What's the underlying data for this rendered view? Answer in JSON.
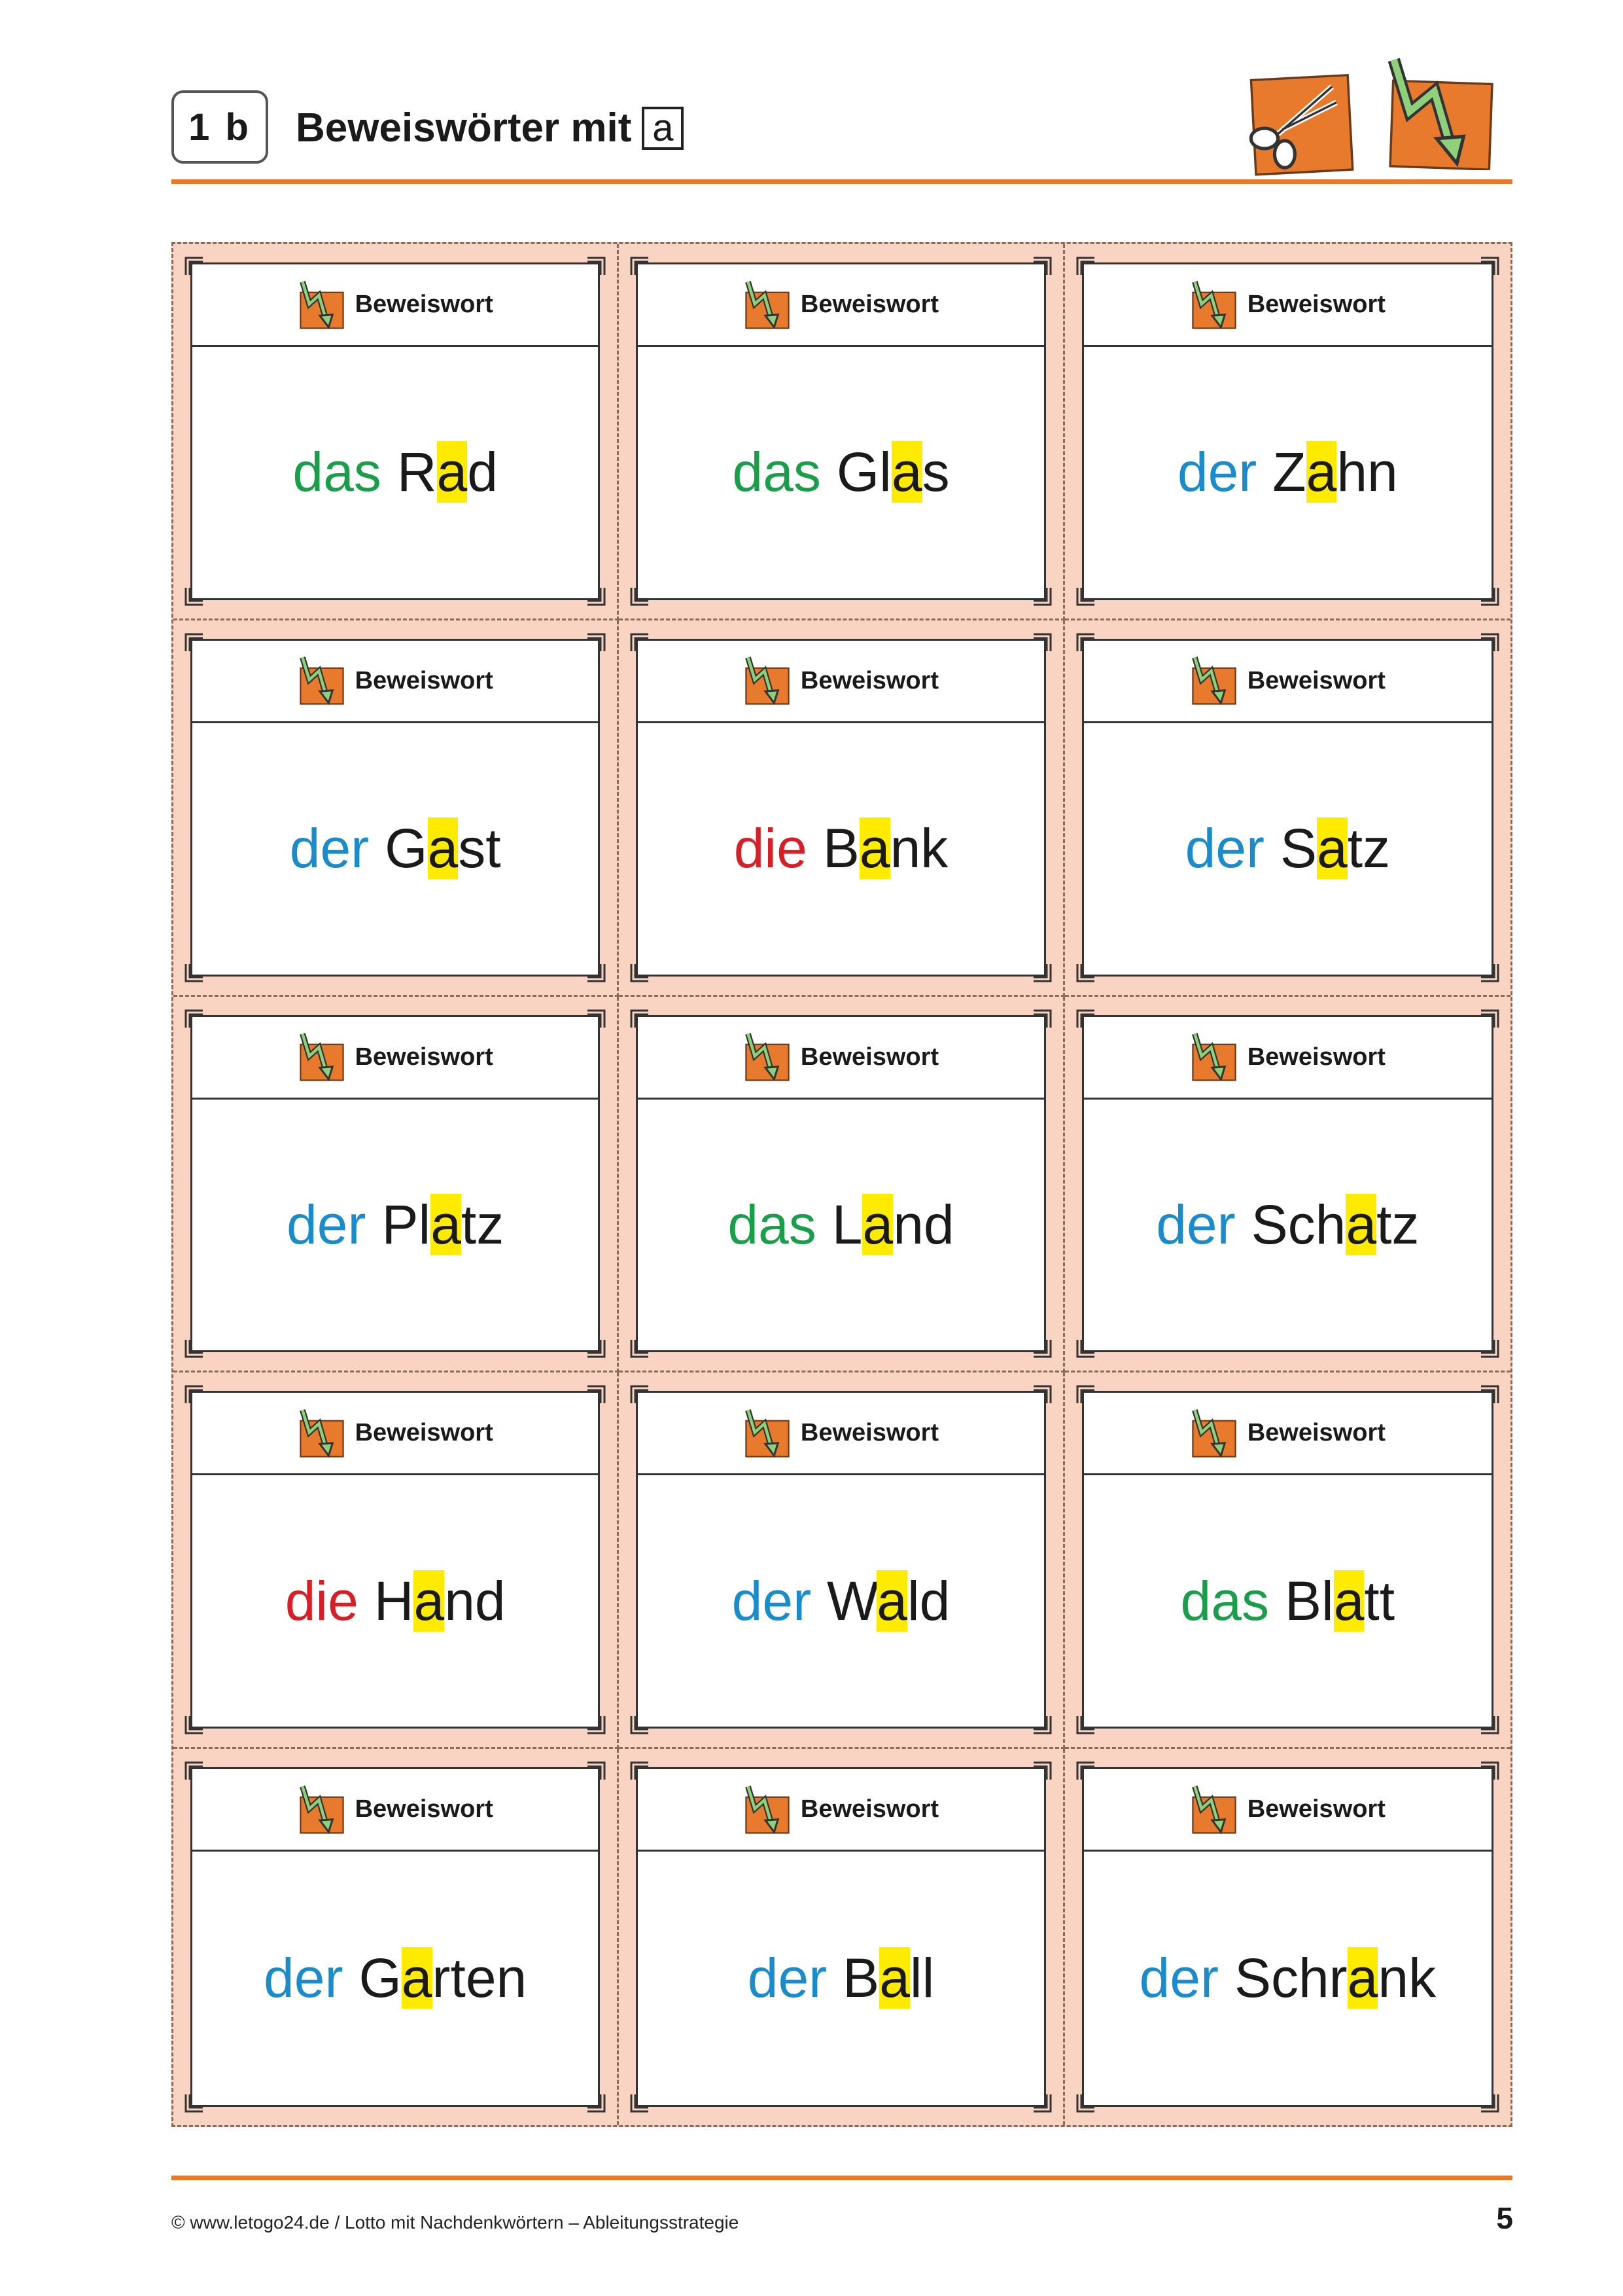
{
  "header": {
    "badge": "1 b",
    "title": "Beweiswörter mit",
    "letter": "a"
  },
  "card_label": "Beweiswort",
  "colors": {
    "das": "#1a9e4a",
    "der": "#1a8ccb",
    "die": "#d61f26",
    "highlight": "#ffeb00",
    "accent": "#e87a2d",
    "card_bg": "#f9d4c2"
  },
  "cards": [
    {
      "article": "das",
      "pre": "R",
      "hl": "a",
      "post": "d"
    },
    {
      "article": "das",
      "pre": "Gl",
      "hl": "a",
      "post": "s"
    },
    {
      "article": "der",
      "pre": "Z",
      "hl": "a",
      "post": "hn"
    },
    {
      "article": "der",
      "pre": "G",
      "hl": "a",
      "post": "st"
    },
    {
      "article": "die",
      "pre": "B",
      "hl": "a",
      "post": "nk"
    },
    {
      "article": "der",
      "pre": "S",
      "hl": "a",
      "post": "tz"
    },
    {
      "article": "der",
      "pre": "Pl",
      "hl": "a",
      "post": "tz"
    },
    {
      "article": "das",
      "pre": "L",
      "hl": "a",
      "post": "nd"
    },
    {
      "article": "der",
      "pre": "Sch",
      "hl": "a",
      "post": "tz"
    },
    {
      "article": "die",
      "pre": "H",
      "hl": "a",
      "post": "nd"
    },
    {
      "article": "der",
      "pre": "W",
      "hl": "a",
      "post": "ld"
    },
    {
      "article": "das",
      "pre": "Bl",
      "hl": "a",
      "post": "tt"
    },
    {
      "article": "der",
      "pre": "G",
      "hl": "a",
      "post": "rten"
    },
    {
      "article": "der",
      "pre": "B",
      "hl": "a",
      "post": "ll"
    },
    {
      "article": "der",
      "pre": "Schr",
      "hl": "a",
      "post": "nk"
    }
  ],
  "footer": {
    "copyright": "© www.letogo24.de / Lotto mit Nachdenkwörtern – Ableitungsstrategie",
    "page_number": "5"
  }
}
